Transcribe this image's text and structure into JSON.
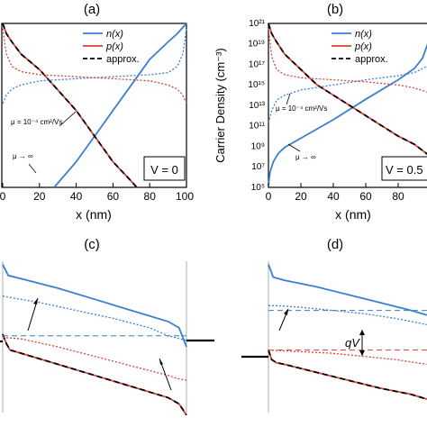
{
  "panels": {
    "a": {
      "label": "(a)",
      "annotation": "V = 0"
    },
    "b": {
      "label": "(b)",
      "annotation": "V = 0.5"
    },
    "c": {
      "label": "(c)"
    },
    "d": {
      "label": "(d)",
      "annotation": "qV"
    }
  },
  "colors": {
    "n": "#3a7fd0",
    "p": "#d9413a",
    "approx": "#000000",
    "axis": "#000000"
  },
  "chart_data": [
    {
      "type": "line",
      "panel": "a",
      "xlabel": "x (nm)",
      "ylabel": "",
      "xlim": [
        0,
        100
      ],
      "ylim": [
        5,
        21
      ],
      "yscale": "log10",
      "x_ticks": [
        "0",
        "20",
        "40",
        "60",
        "80",
        "100"
      ],
      "legend": {
        "position": "top-right",
        "entries": [
          "n(x)",
          "p(x)",
          "approx."
        ]
      },
      "annotations": [
        "μ = 10⁻⁴ cm²/Vs",
        "μ → ∞",
        "V = 0"
      ],
      "series": [
        {
          "name": "n(x)",
          "style": "solid",
          "x": [
            28,
            40,
            50,
            60,
            70,
            80,
            90,
            95,
            98,
            100
          ],
          "log10_y": [
            5,
            7.5,
            10,
            12.5,
            15,
            17.5,
            19.2,
            20.0,
            20.6,
            21
          ]
        },
        {
          "name": "p(x)",
          "style": "solid",
          "x": [
            0,
            2,
            5,
            10,
            20,
            30,
            40,
            50,
            60,
            70,
            73
          ],
          "log10_y": [
            21,
            20.0,
            19.2,
            18.0,
            16.5,
            14.5,
            12.5,
            10,
            7.5,
            5.6,
            5
          ]
        },
        {
          "name": "approx.",
          "style": "dashed",
          "x": [
            0,
            2,
            5,
            10,
            20,
            30,
            40,
            50,
            60,
            70,
            73
          ],
          "log10_y": [
            21,
            20.0,
            19.2,
            18.0,
            16.5,
            14.5,
            12.5,
            10,
            7.5,
            5.6,
            5
          ]
        },
        {
          "name": "n(x), μ = 10⁻⁴",
          "style": "dotted",
          "x": [
            0,
            2,
            5,
            10,
            20,
            40,
            60,
            80,
            90,
            95,
            98,
            100
          ],
          "log10_y": [
            13.2,
            14.0,
            14.6,
            15.0,
            15.4,
            15.6,
            15.8,
            16.0,
            16.2,
            16.8,
            18.0,
            20.5
          ]
        },
        {
          "name": "p(x), μ = 10⁻⁴",
          "style": "dotted",
          "x": [
            0,
            2,
            5,
            10,
            20,
            40,
            60,
            80,
            90,
            95,
            98,
            100
          ],
          "log10_y": [
            20.5,
            18.0,
            16.8,
            16.3,
            16.0,
            15.8,
            15.6,
            15.4,
            15.0,
            14.6,
            14.0,
            13.2
          ]
        }
      ]
    },
    {
      "type": "line",
      "panel": "b",
      "xlabel": "x (nm)",
      "ylabel": "Carrier Density (cm⁻³)",
      "xlim": [
        0,
        100
      ],
      "ylim": [
        5,
        21
      ],
      "yscale": "log10",
      "x_ticks": [
        "0",
        "20",
        "40",
        "60",
        "80"
      ],
      "y_ticks": [
        "10⁵",
        "10⁷",
        "10⁹",
        "10¹¹",
        "10¹³",
        "10¹⁵",
        "10¹⁷",
        "10¹⁹",
        "10²¹"
      ],
      "legend": {
        "position": "top-right",
        "entries": [
          "n(x)",
          "p(x)",
          "approx."
        ]
      },
      "annotations": [
        "μ = 10⁻⁴ cm²/Vs",
        "μ → ∞",
        "V = 0.5"
      ],
      "series": [
        {
          "name": "n(x)",
          "style": "solid",
          "x": [
            0,
            1,
            3,
            6,
            10,
            20,
            40,
            60,
            80,
            90,
            95,
            100
          ],
          "log10_y": [
            5.2,
            6.5,
            7.5,
            8.3,
            8.9,
            9.8,
            11.6,
            13.6,
            15.5,
            16.6,
            17.6,
            19.8
          ]
        },
        {
          "name": "p(x)",
          "style": "solid",
          "x": [
            0,
            2,
            5,
            10,
            20,
            30,
            40,
            50,
            60,
            70,
            80,
            90,
            100
          ],
          "log10_y": [
            21,
            20.0,
            19.2,
            18.0,
            16.5,
            15.0,
            14.0,
            13.0,
            12.0,
            11.0,
            10.0,
            9.2,
            8.0
          ]
        },
        {
          "name": "approx.",
          "style": "dashed",
          "x": [
            0,
            2,
            5,
            10,
            20,
            30,
            40,
            50,
            60,
            70,
            80,
            90,
            100
          ],
          "log10_y": [
            21,
            20.0,
            19.2,
            18.0,
            16.5,
            15.0,
            14.0,
            13.0,
            12.0,
            11.0,
            10.0,
            9.2,
            8.0
          ]
        },
        {
          "name": "n(x), μ = 10⁻⁴",
          "style": "dotted",
          "x": [
            0,
            2,
            5,
            10,
            20,
            40,
            60,
            80,
            90,
            100
          ],
          "log10_y": [
            11.3,
            12.5,
            13.5,
            14.0,
            14.5,
            15.0,
            15.5,
            15.9,
            16.2,
            17.0
          ]
        },
        {
          "name": "p(x), μ = 10⁻⁴",
          "style": "dotted",
          "x": [
            0,
            2,
            5,
            10,
            20,
            40,
            60,
            80,
            90,
            100
          ],
          "log10_y": [
            20.5,
            17.8,
            16.5,
            16.0,
            15.7,
            15.5,
            15.3,
            15.0,
            14.7,
            14.2
          ]
        }
      ]
    },
    {
      "type": "line",
      "panel": "c",
      "description_kind": "band diagram",
      "xlim": [
        0,
        100
      ],
      "ylim": [
        0,
        100
      ],
      "series": [
        {
          "name": "Ec",
          "style": "solid",
          "x": [
            0,
            3,
            10,
            30,
            50,
            70,
            90,
            96,
            98,
            100
          ],
          "y": [
            98,
            91,
            89,
            83,
            76,
            69,
            62,
            58,
            52,
            46
          ]
        },
        {
          "name": "Ev",
          "style": "solid",
          "x": [
            0,
            2,
            4,
            10,
            30,
            50,
            70,
            90,
            96,
            100
          ],
          "y": [
            54,
            48,
            44,
            42,
            35,
            28,
            21,
            14,
            10,
            3
          ]
        },
        {
          "name": "Ev approx.",
          "style": "dashed",
          "x": [
            0,
            2,
            4,
            10,
            30,
            50,
            70,
            90,
            96,
            100
          ],
          "y": [
            54,
            48,
            44,
            42,
            35,
            28,
            21,
            14,
            10,
            3
          ]
        },
        {
          "name": "Efn",
          "style": "dotted",
          "x": [
            0,
            5,
            20,
            40,
            60,
            80,
            90,
            100
          ],
          "y": [
            78,
            77,
            74,
            69,
            64,
            58,
            53,
            50
          ]
        },
        {
          "name": "Efp",
          "style": "dotted",
          "x": [
            0,
            10,
            30,
            50,
            70,
            90,
            95,
            100
          ],
          "y": [
            52,
            51,
            46,
            40,
            34,
            28,
            26,
            25
          ]
        },
        {
          "name": "EF",
          "style": "dashed",
          "x": [
            0,
            100
          ],
          "y": [
            53,
            53
          ]
        }
      ]
    },
    {
      "type": "line",
      "panel": "d",
      "description_kind": "band diagram",
      "xlim": [
        0,
        100
      ],
      "ylim": [
        0,
        100
      ],
      "series": [
        {
          "name": "Ec",
          "style": "solid",
          "x": [
            0,
            3,
            10,
            30,
            50,
            70,
            90,
            100
          ],
          "y": [
            98,
            90,
            88,
            84,
            79,
            74,
            69,
            66
          ]
        },
        {
          "name": "Ev",
          "style": "solid",
          "x": [
            0,
            2,
            5,
            10,
            30,
            50,
            70,
            90,
            100
          ],
          "y": [
            44,
            38,
            36,
            35,
            30,
            25,
            20,
            16,
            13
          ]
        },
        {
          "name": "Ev approx.",
          "style": "dashed",
          "x": [
            0,
            2,
            5,
            10,
            30,
            50,
            70,
            90,
            100
          ],
          "y": [
            44,
            38,
            36,
            35,
            30,
            25,
            20,
            16,
            13
          ]
        },
        {
          "name": "Efn",
          "style": "dotted",
          "x": [
            0,
            5,
            20,
            40,
            60,
            80,
            100
          ],
          "y": [
            72,
            72,
            71,
            69,
            67,
            64,
            60
          ]
        },
        {
          "name": "Efp",
          "style": "dotted",
          "x": [
            0,
            20,
            40,
            60,
            80,
            100
          ],
          "y": [
            44,
            43,
            42,
            40,
            38,
            35
          ]
        },
        {
          "name": "EFn",
          "style": "dashed",
          "x": [
            0,
            100
          ],
          "y": [
            69,
            69
          ]
        },
        {
          "name": "EFp",
          "style": "dashed",
          "x": [
            0,
            100
          ],
          "y": [
            44,
            44
          ]
        }
      ]
    }
  ]
}
